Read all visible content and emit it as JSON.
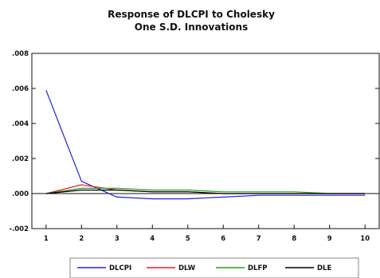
{
  "chart_data": {
    "type": "line",
    "title_lines": [
      "Response of DLCPI to Cholesky",
      "One S.D. Innovations"
    ],
    "x": [
      1,
      2,
      3,
      4,
      5,
      6,
      7,
      8,
      9,
      10
    ],
    "x_tick_labels": [
      "1",
      "2",
      "3",
      "4",
      "5",
      "6",
      "7",
      "8",
      "9",
      "10"
    ],
    "xlim": [
      0.6,
      10.4
    ],
    "ylim": [
      -0.002,
      0.008
    ],
    "y_ticks": [
      0.008,
      0.006,
      0.004,
      0.002,
      0.0,
      -0.002
    ],
    "y_tick_labels": [
      ".008",
      ".006",
      ".004",
      ".002",
      ".000",
      "-.002"
    ],
    "zero_line": true,
    "grid": false,
    "legend_position": "bottom",
    "series": [
      {
        "name": "DLCPI",
        "color": "#2020e0",
        "values": [
          0.0059,
          0.0007,
          -0.0002,
          -0.0003,
          -0.0003,
          -0.0002,
          -0.0001,
          -0.0001,
          -0.0001,
          -0.0001
        ]
      },
      {
        "name": "DLW",
        "color": "#e02020",
        "values": [
          0.0,
          0.0005,
          0.0002,
          0.0001,
          0.0001,
          0.0,
          0.0,
          0.0,
          0.0,
          0.0
        ]
      },
      {
        "name": "DLFP",
        "color": "#20a020",
        "values": [
          0.0,
          0.0003,
          0.0003,
          0.0002,
          0.0002,
          0.0001,
          0.0001,
          0.0001,
          0.0,
          0.0
        ]
      },
      {
        "name": "DLE",
        "color": "#000000",
        "values": [
          0.0,
          0.0002,
          0.0002,
          0.0001,
          0.0001,
          0.0,
          0.0,
          0.0,
          0.0,
          0.0
        ]
      }
    ]
  }
}
